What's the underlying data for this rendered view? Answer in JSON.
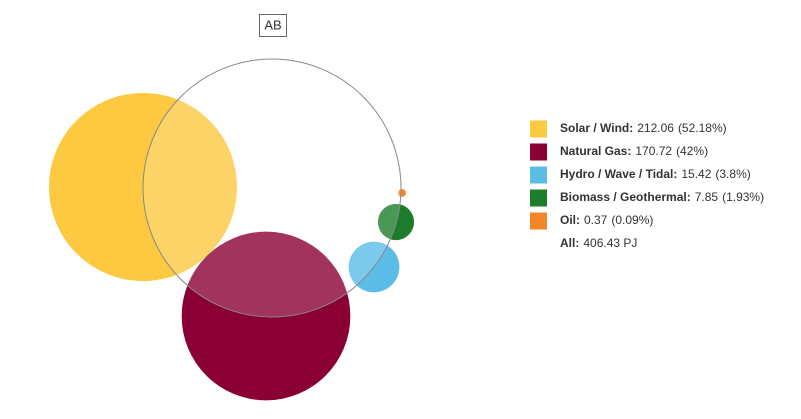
{
  "chart_data": {
    "type": "bubble",
    "group_label": "AB",
    "series": [
      {
        "name": "Solar / Wind:",
        "color": "#fcc940",
        "value": 212.06,
        "share_label": "(52.18%)"
      },
      {
        "name": "Natural Gas:",
        "color": "#8a0034",
        "value": 170.72,
        "share_label": "(42%)"
      },
      {
        "name": "Hydro / Wave / Tidal:",
        "color": "#5bbde6",
        "value": 15.42,
        "share_label": "(3.8%)"
      },
      {
        "name": "Biomass / Geothermal:",
        "color": "#1e7d2c",
        "value": 7.85,
        "share_label": "(1.93%)"
      },
      {
        "name": "Oil:",
        "color": "#f4862a",
        "value": 0.37,
        "share_label": "(0.09%)"
      }
    ],
    "total_name": "All:",
    "total_label": "406.43 PJ"
  }
}
